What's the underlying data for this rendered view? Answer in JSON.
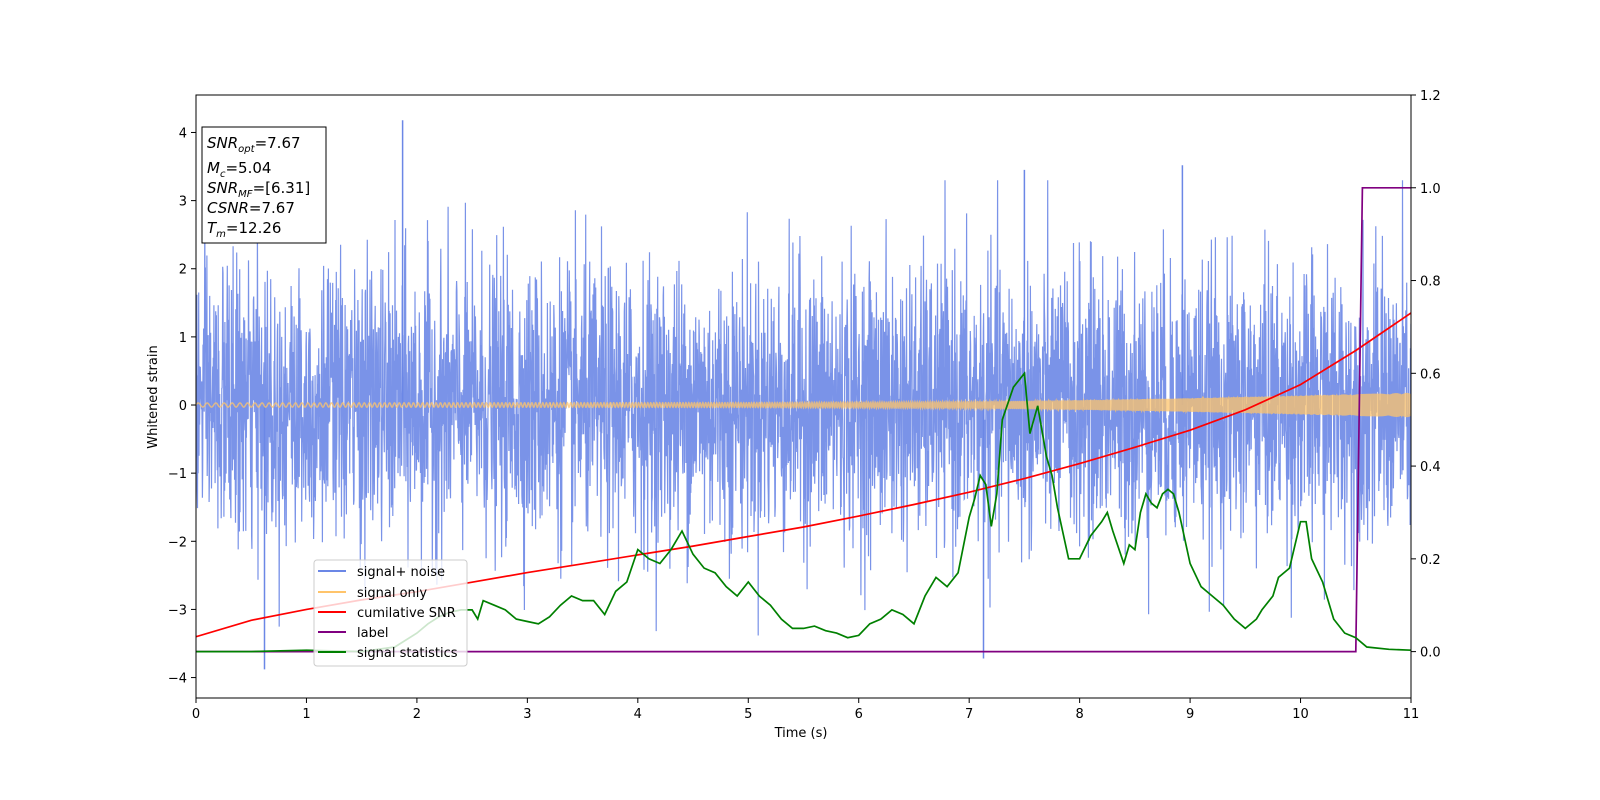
{
  "chart_data": {
    "type": "line",
    "xlabel": "Time (s)",
    "ylabel": "Whitened strain",
    "xlim": [
      0,
      11
    ],
    "ylim": [
      -4.3,
      4.55
    ],
    "y2lim": [
      -0.1,
      1.2
    ],
    "x_ticks": [
      0,
      1,
      2,
      3,
      4,
      5,
      6,
      7,
      8,
      9,
      10,
      11
    ],
    "y_ticks": [
      -4,
      -3,
      -2,
      -1,
      0,
      1,
      2,
      3,
      4
    ],
    "y2_ticks": [
      0.0,
      0.2,
      0.4,
      0.6,
      0.8,
      1.0,
      1.2
    ],
    "legend_position": "lower-left",
    "legend": [
      "signal+ noise",
      "signal only",
      "cumilative SNR",
      "label",
      "signal statistics"
    ],
    "colors": {
      "signal_noise": "#6b87e6",
      "signal_only": "#ffc46b",
      "cumulative_snr": "#ff0000",
      "label": "#800080",
      "signal_statistics": "#008000"
    },
    "annotation": {
      "snr_opt": "=7.67",
      "mc": "=5.04",
      "snr_mf": "=[6.31]",
      "csnr": "=7.67",
      "tm": "=12.26"
    },
    "series": [
      {
        "name": "signal+ noise",
        "axis": "left",
        "description": "Gaussian noise, approx. std 1.0, extremes about -3.9 and 4.2",
        "noise_std": 1.0,
        "peaks": [
          [
            1.87,
            4.18
          ],
          [
            0.62,
            -3.88
          ],
          [
            7.13,
            -3.72
          ],
          [
            8.93,
            3.52
          ],
          [
            7.5,
            3.45
          ]
        ]
      },
      {
        "name": "signal only",
        "axis": "left",
        "envelope": {
          "x": [
            0,
            5,
            7,
            8,
            9,
            10,
            11
          ],
          "amplitude": [
            0.03,
            0.035,
            0.05,
            0.07,
            0.1,
            0.14,
            0.18
          ]
        }
      },
      {
        "name": "cumilative SNR",
        "axis": "left",
        "x": [
          0,
          0.5,
          1,
          1.5,
          2,
          2.5,
          3,
          3.5,
          4,
          4.5,
          5,
          5.5,
          6,
          6.5,
          7,
          7.5,
          8,
          8.5,
          9,
          9.5,
          10,
          10.5,
          11
        ],
        "y": [
          -3.4,
          -3.16,
          -3.0,
          -2.86,
          -2.74,
          -2.6,
          -2.46,
          -2.33,
          -2.2,
          -2.07,
          -1.93,
          -1.79,
          -1.63,
          -1.46,
          -1.28,
          -1.08,
          -0.86,
          -0.62,
          -0.37,
          -0.07,
          0.3,
          0.8,
          1.35
        ]
      },
      {
        "name": "label",
        "axis": "right",
        "x": [
          0,
          10.5,
          10.56,
          11
        ],
        "y": [
          0,
          0,
          1,
          1
        ]
      },
      {
        "name": "signal statistics",
        "axis": "right",
        "x": [
          0,
          0.5,
          1,
          1.5,
          1.8,
          2,
          2.1,
          2.2,
          2.3,
          2.4,
          2.5,
          2.55,
          2.6,
          2.7,
          2.8,
          2.9,
          3,
          3.1,
          3.2,
          3.3,
          3.4,
          3.5,
          3.6,
          3.7,
          3.8,
          3.9,
          4,
          4.1,
          4.2,
          4.3,
          4.4,
          4.5,
          4.6,
          4.7,
          4.8,
          4.9,
          5,
          5.1,
          5.2,
          5.3,
          5.4,
          5.5,
          5.6,
          5.7,
          5.8,
          5.9,
          6,
          6.1,
          6.2,
          6.3,
          6.4,
          6.5,
          6.6,
          6.7,
          6.8,
          6.9,
          7,
          7.05,
          7.1,
          7.15,
          7.2,
          7.25,
          7.3,
          7.4,
          7.5,
          7.55,
          7.62,
          7.7,
          7.75,
          7.8,
          7.9,
          8,
          8.1,
          8.2,
          8.25,
          8.3,
          8.4,
          8.45,
          8.5,
          8.55,
          8.6,
          8.65,
          8.7,
          8.75,
          8.8,
          8.85,
          8.9,
          9,
          9.1,
          9.2,
          9.3,
          9.4,
          9.5,
          9.6,
          9.65,
          9.75,
          9.8,
          9.9,
          10,
          10.05,
          10.1,
          10.2,
          10.3,
          10.4,
          10.5,
          10.6,
          10.8,
          11
        ],
        "y": [
          0,
          0,
          0.003,
          0,
          0.01,
          0.04,
          0.06,
          0.075,
          0.085,
          0.09,
          0.09,
          0.07,
          0.11,
          0.1,
          0.09,
          0.07,
          0.065,
          0.06,
          0.075,
          0.1,
          0.12,
          0.11,
          0.11,
          0.08,
          0.13,
          0.15,
          0.22,
          0.2,
          0.19,
          0.22,
          0.26,
          0.21,
          0.18,
          0.17,
          0.14,
          0.12,
          0.15,
          0.12,
          0.1,
          0.07,
          0.05,
          0.05,
          0.055,
          0.045,
          0.04,
          0.03,
          0.035,
          0.06,
          0.07,
          0.09,
          0.08,
          0.06,
          0.12,
          0.16,
          0.14,
          0.17,
          0.29,
          0.33,
          0.38,
          0.36,
          0.27,
          0.34,
          0.5,
          0.57,
          0.6,
          0.47,
          0.53,
          0.42,
          0.38,
          0.31,
          0.2,
          0.2,
          0.25,
          0.28,
          0.3,
          0.26,
          0.19,
          0.23,
          0.22,
          0.3,
          0.34,
          0.32,
          0.31,
          0.34,
          0.35,
          0.34,
          0.3,
          0.19,
          0.14,
          0.12,
          0.1,
          0.07,
          0.05,
          0.07,
          0.09,
          0.12,
          0.16,
          0.18,
          0.28,
          0.28,
          0.2,
          0.15,
          0.07,
          0.04,
          0.03,
          0.01,
          0.005,
          0.003
        ]
      }
    ]
  }
}
